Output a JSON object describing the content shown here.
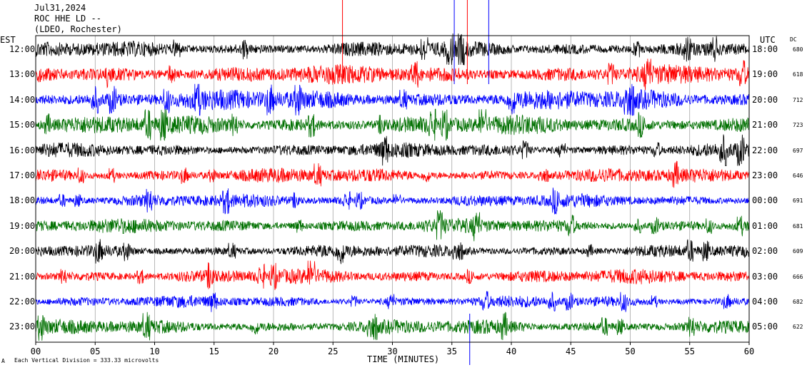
{
  "header": {
    "date": "Jul31,2024",
    "station": "ROC HHE LD --",
    "network": "(LDEO, Rochester)"
  },
  "left_tz": "EST",
  "right_tz": "UTC",
  "dc_label": "DC",
  "x_axis_label": "TIME (MINUTES)",
  "footer_note": "Each Vertical Division =  333.33 microvolts",
  "footer_mark": "A",
  "chart_data": {
    "type": "line",
    "title": "Jul31,2024 ROC HHE LD -- (LDEO, Rochester)",
    "xlabel": "TIME (MINUTES)",
    "xlim": [
      0,
      60
    ],
    "x_ticks": [
      "00",
      "05",
      "10",
      "15",
      "20",
      "25",
      "30",
      "35",
      "40",
      "45",
      "50",
      "55",
      "60"
    ],
    "grid_vertical": true,
    "rows": [
      {
        "est": "12:00",
        "utc": "18:00",
        "dc": "680",
        "color": "#000000",
        "amp": 1.1
      },
      {
        "est": "13:00",
        "utc": "19:00",
        "dc": "618",
        "color": "#ff0000",
        "amp": 1.3
      },
      {
        "est": "14:00",
        "utc": "20:00",
        "dc": "712",
        "color": "#0000ff",
        "amp": 1.4
      },
      {
        "est": "15:00",
        "utc": "21:00",
        "dc": "723",
        "color": "#007000",
        "amp": 1.3
      },
      {
        "est": "16:00",
        "utc": "22:00",
        "dc": "697",
        "color": "#000000",
        "amp": 1.0
      },
      {
        "est": "17:00",
        "utc": "23:00",
        "dc": "646",
        "color": "#ff0000",
        "amp": 1.0
      },
      {
        "est": "18:00",
        "utc": "00:00",
        "dc": "691",
        "color": "#0000ff",
        "amp": 0.9
      },
      {
        "est": "19:00",
        "utc": "01:00",
        "dc": "681",
        "color": "#007000",
        "amp": 1.0
      },
      {
        "est": "20:00",
        "utc": "02:00",
        "dc": "609",
        "color": "#000000",
        "amp": 0.9
      },
      {
        "est": "21:00",
        "utc": "03:00",
        "dc": "666",
        "color": "#ff0000",
        "amp": 1.0
      },
      {
        "est": "22:00",
        "utc": "04:00",
        "dc": "682",
        "color": "#0000ff",
        "amp": 0.8
      },
      {
        "est": "23:00",
        "utc": "05:00",
        "dc": "622",
        "color": "#007000",
        "amp": 1.0
      }
    ],
    "marker_spikes": [
      {
        "minute": 25.8,
        "color": "#ff0000"
      },
      {
        "minute": 35.2,
        "color": "#0000ff"
      },
      {
        "minute": 36.3,
        "color": "#ff0000"
      },
      {
        "minute": 38.1,
        "color": "#0000ff"
      }
    ],
    "bottom_marker": {
      "minute": 36.5,
      "color": "#0000ff"
    }
  }
}
